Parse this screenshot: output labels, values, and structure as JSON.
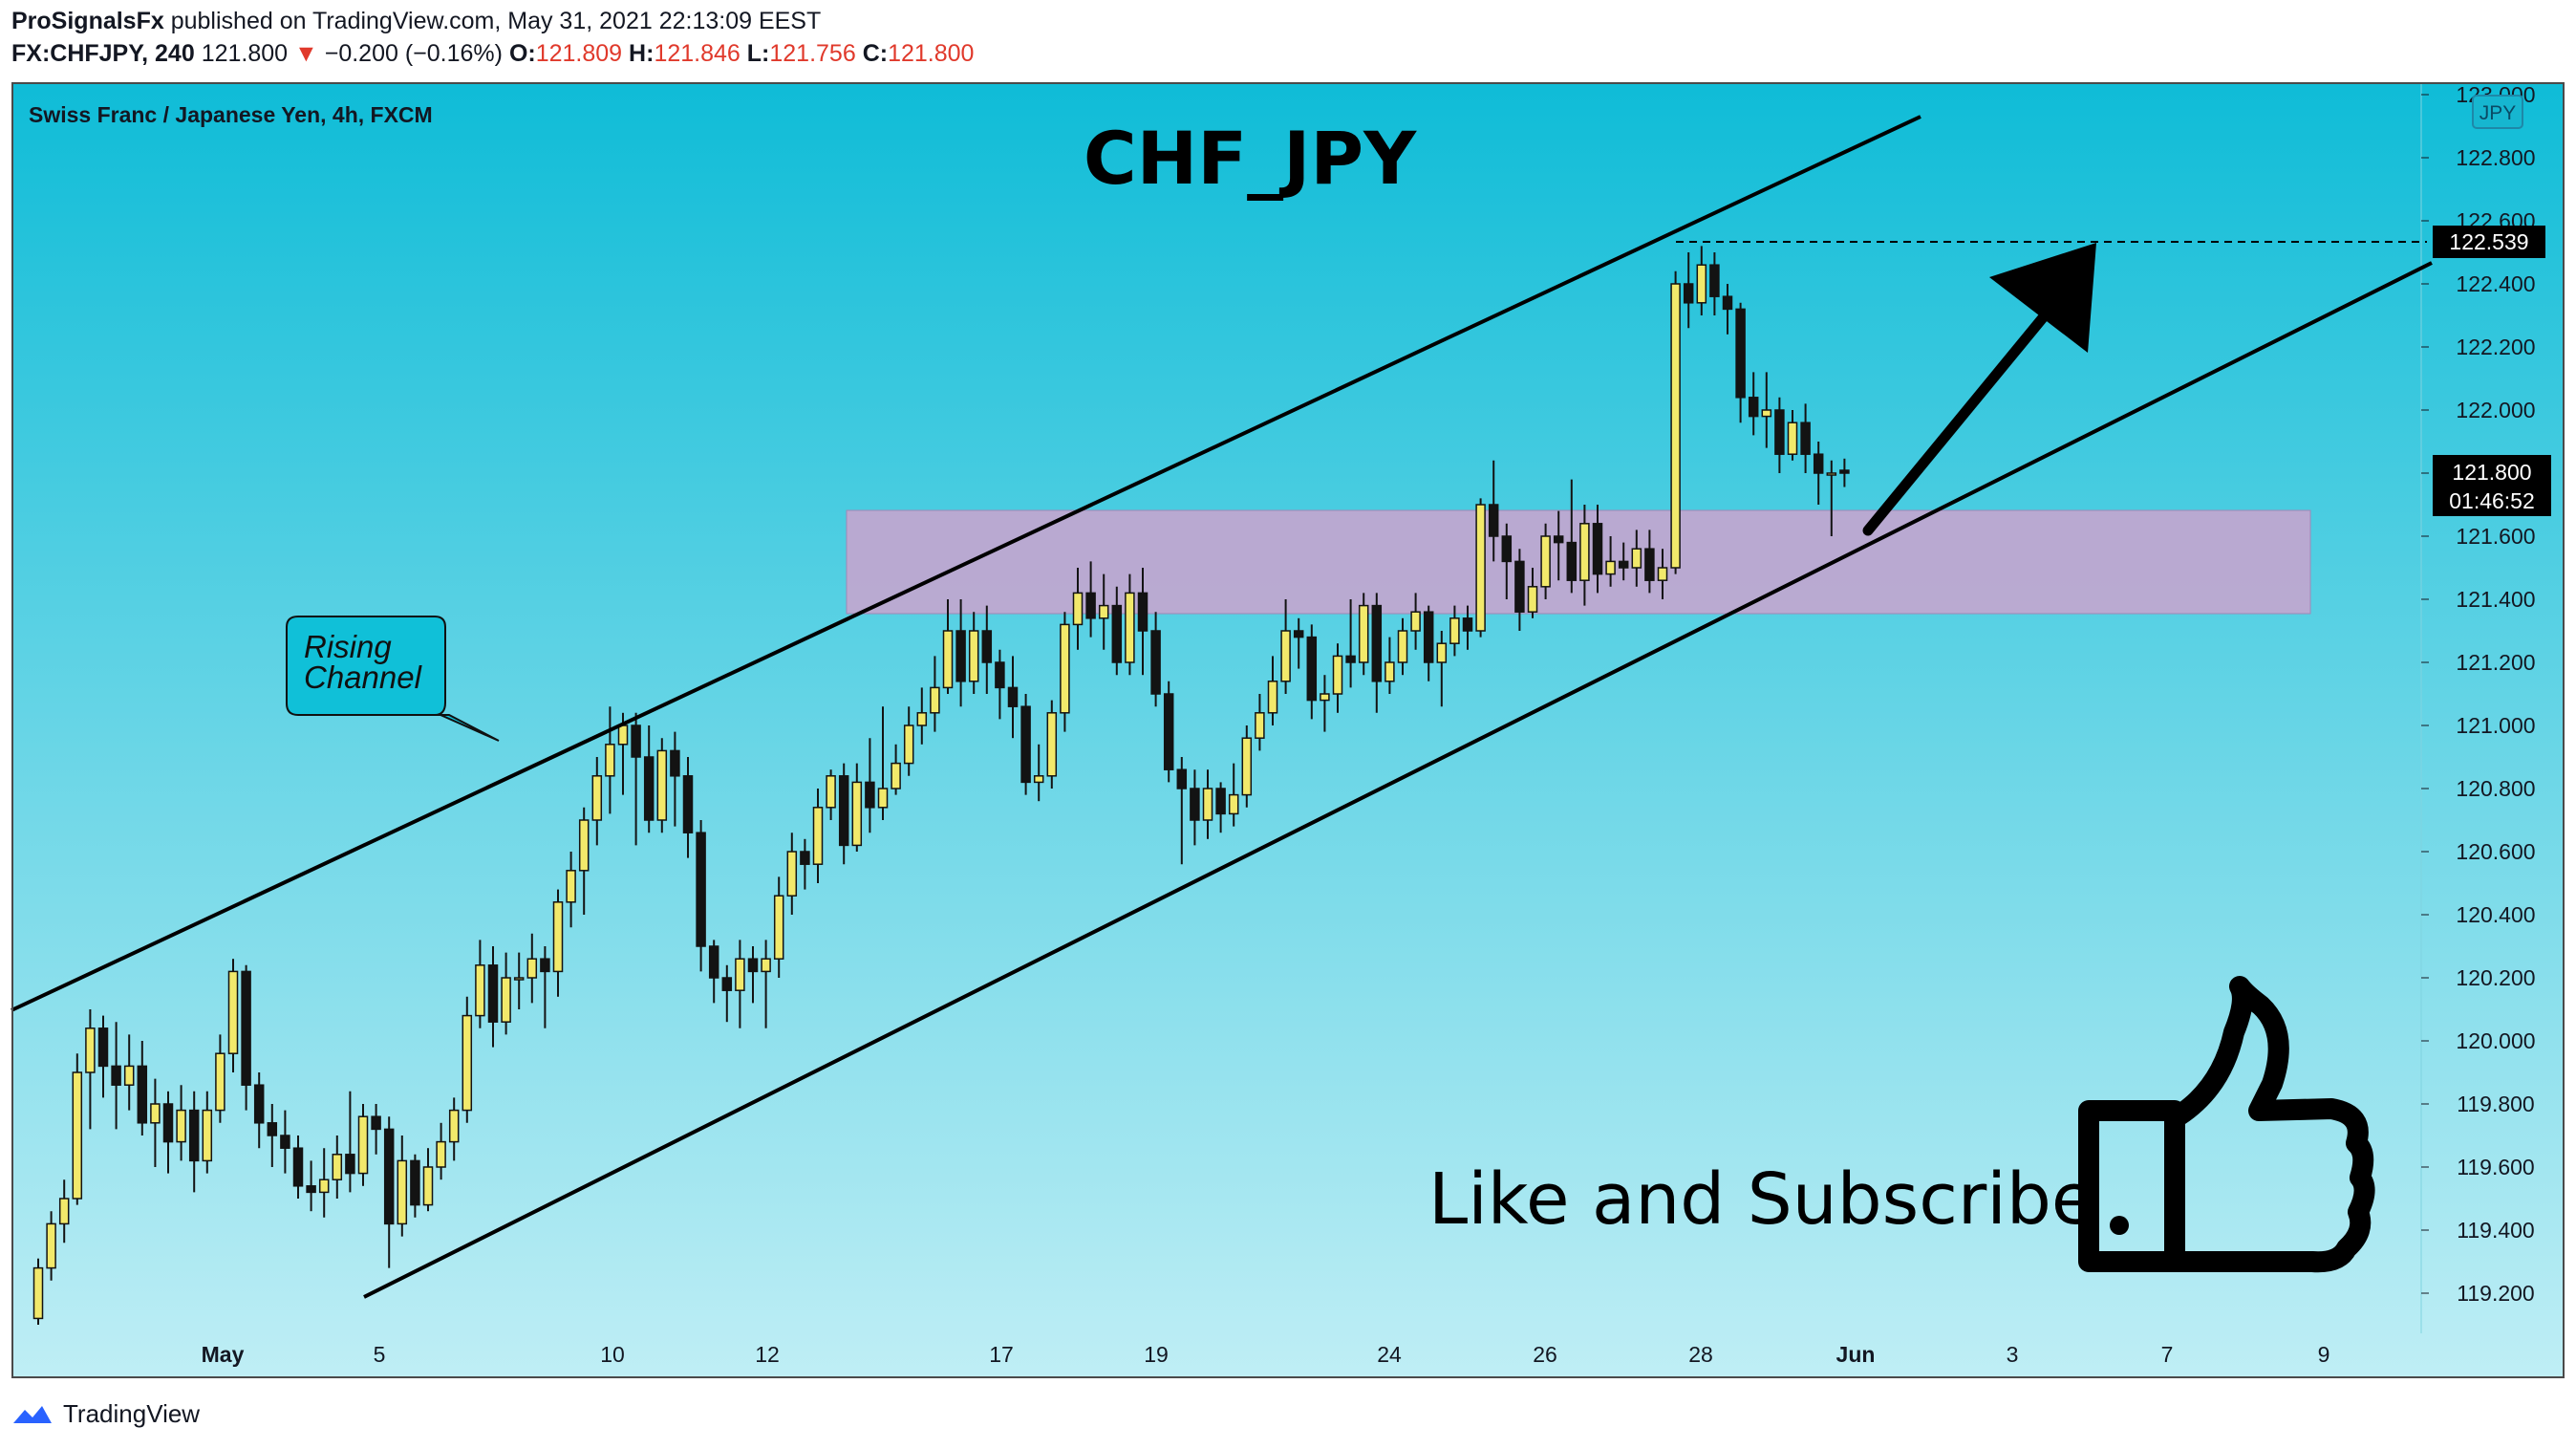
{
  "header": {
    "author": "ProSignalsFx",
    "published_text": "published on TradingView.com, May 31, 2021 22:13:09 EEST",
    "symbol": "FX:CHFJPY, 240",
    "last": "121.800",
    "change_arrow": "▼",
    "change": "−0.200 (−0.16%)",
    "o_label": "O:",
    "o_value": "121.809",
    "h_label": "H:",
    "h_value": "121.846",
    "l_label": "L:",
    "l_value": "121.756",
    "c_label": "C:",
    "c_value": "121.800"
  },
  "chart_title": "CHF_JPY",
  "instrument_label": "Swiss Franc / Japanese Yen, 4h, FXCM",
  "currency_badge": "JPY",
  "price_tag": {
    "value": "121.800",
    "countdown": "01:46:52"
  },
  "target_tag": "122.539",
  "callout": {
    "line1": "Rising",
    "line2": "Channel"
  },
  "promo_text": "Like and Subscribe",
  "footer_brand": "TradingView",
  "colors": {
    "bg_top": "#0fbcd7",
    "bg_bottom": "#bfeef5",
    "candle_up": "#f2e96b",
    "candle_down": "#131313",
    "zone": "#c2a6cf",
    "accent_red": "#e0392b"
  },
  "chart_data": {
    "type": "candlestick",
    "title": "CHF_JPY",
    "timeframe": "4h",
    "y_ticks": [
      "123.000",
      "122.800",
      "122.600",
      "122.400",
      "122.200",
      "122.000",
      "121.800",
      "121.600",
      "121.400",
      "121.200",
      "121.000",
      "120.800",
      "120.600",
      "120.400",
      "120.200",
      "120.000",
      "119.800",
      "119.600",
      "119.400",
      "119.200"
    ],
    "x_ticks": [
      "May",
      "5",
      "10",
      "12",
      "17",
      "19",
      "24",
      "26",
      "28",
      "Jun",
      "3",
      "7",
      "9"
    ],
    "ylim": [
      119.0,
      123.0
    ],
    "resistance_zone": [
      121.35,
      121.7
    ],
    "target_level": 122.539,
    "last_price": 121.8,
    "candles": [
      [
        119.12,
        119.28,
        119.1,
        119.31
      ],
      [
        119.28,
        119.42,
        119.24,
        119.46
      ],
      [
        119.42,
        119.5,
        119.36,
        119.56
      ],
      [
        119.5,
        119.9,
        119.48,
        119.96
      ],
      [
        119.9,
        120.04,
        119.72,
        120.1
      ],
      [
        120.04,
        119.92,
        119.82,
        120.08
      ],
      [
        119.92,
        119.86,
        119.72,
        120.06
      ],
      [
        119.86,
        119.92,
        119.78,
        120.02
      ],
      [
        119.92,
        119.74,
        119.7,
        120.0
      ],
      [
        119.74,
        119.8,
        119.6,
        119.88
      ],
      [
        119.8,
        119.68,
        119.58,
        119.84
      ],
      [
        119.68,
        119.78,
        119.62,
        119.86
      ],
      [
        119.78,
        119.62,
        119.52,
        119.84
      ],
      [
        119.62,
        119.78,
        119.58,
        119.84
      ],
      [
        119.78,
        119.96,
        119.74,
        120.02
      ],
      [
        119.96,
        120.22,
        119.9,
        120.26
      ],
      [
        120.22,
        119.86,
        119.78,
        120.24
      ],
      [
        119.86,
        119.74,
        119.66,
        119.9
      ],
      [
        119.74,
        119.7,
        119.6,
        119.8
      ],
      [
        119.7,
        119.66,
        119.58,
        119.78
      ],
      [
        119.66,
        119.54,
        119.5,
        119.7
      ],
      [
        119.54,
        119.52,
        119.46,
        119.62
      ],
      [
        119.52,
        119.56,
        119.44,
        119.66
      ],
      [
        119.56,
        119.64,
        119.5,
        119.7
      ],
      [
        119.64,
        119.58,
        119.52,
        119.84
      ],
      [
        119.58,
        119.76,
        119.54,
        119.8
      ],
      [
        119.76,
        119.72,
        119.64,
        119.8
      ],
      [
        119.72,
        119.42,
        119.28,
        119.76
      ],
      [
        119.42,
        119.62,
        119.38,
        119.7
      ],
      [
        119.62,
        119.48,
        119.44,
        119.64
      ],
      [
        119.48,
        119.6,
        119.46,
        119.66
      ],
      [
        119.6,
        119.68,
        119.56,
        119.74
      ],
      [
        119.68,
        119.78,
        119.62,
        119.82
      ],
      [
        119.78,
        120.08,
        119.74,
        120.14
      ],
      [
        120.08,
        120.24,
        120.04,
        120.32
      ],
      [
        120.24,
        120.06,
        119.98,
        120.3
      ],
      [
        120.06,
        120.2,
        120.02,
        120.28
      ],
      [
        120.2,
        120.2,
        120.1,
        120.28
      ],
      [
        120.2,
        120.26,
        120.12,
        120.34
      ],
      [
        120.26,
        120.22,
        120.04,
        120.3
      ],
      [
        120.22,
        120.44,
        120.14,
        120.48
      ],
      [
        120.44,
        120.54,
        120.36,
        120.6
      ],
      [
        120.54,
        120.7,
        120.4,
        120.74
      ],
      [
        120.7,
        120.84,
        120.62,
        120.9
      ],
      [
        120.84,
        120.94,
        120.72,
        121.06
      ],
      [
        120.94,
        121.0,
        120.78,
        121.04
      ],
      [
        121.0,
        120.9,
        120.62,
        121.04
      ],
      [
        120.9,
        120.7,
        120.66,
        121.0
      ],
      [
        120.7,
        120.92,
        120.66,
        120.96
      ],
      [
        120.92,
        120.84,
        120.68,
        120.98
      ],
      [
        120.84,
        120.66,
        120.58,
        120.9
      ],
      [
        120.66,
        120.3,
        120.22,
        120.7
      ],
      [
        120.3,
        120.2,
        120.12,
        120.32
      ],
      [
        120.2,
        120.16,
        120.06,
        120.24
      ],
      [
        120.16,
        120.26,
        120.04,
        120.32
      ],
      [
        120.26,
        120.22,
        120.12,
        120.3
      ],
      [
        120.22,
        120.26,
        120.04,
        120.32
      ],
      [
        120.26,
        120.46,
        120.2,
        120.52
      ],
      [
        120.46,
        120.6,
        120.4,
        120.66
      ],
      [
        120.6,
        120.56,
        120.48,
        120.64
      ],
      [
        120.56,
        120.74,
        120.5,
        120.8
      ],
      [
        120.74,
        120.84,
        120.7,
        120.86
      ],
      [
        120.84,
        120.62,
        120.56,
        120.88
      ],
      [
        120.62,
        120.82,
        120.6,
        120.88
      ],
      [
        120.82,
        120.74,
        120.66,
        120.96
      ],
      [
        120.74,
        120.8,
        120.7,
        121.06
      ],
      [
        120.8,
        120.88,
        120.78,
        120.94
      ],
      [
        120.88,
        121.0,
        120.84,
        121.06
      ],
      [
        121.0,
        121.04,
        120.94,
        121.12
      ],
      [
        121.04,
        121.12,
        120.98,
        121.22
      ],
      [
        121.12,
        121.3,
        121.1,
        121.4
      ],
      [
        121.3,
        121.14,
        121.06,
        121.4
      ],
      [
        121.14,
        121.3,
        121.1,
        121.36
      ],
      [
        121.3,
        121.2,
        121.1,
        121.38
      ],
      [
        121.2,
        121.12,
        121.02,
        121.24
      ],
      [
        121.12,
        121.06,
        120.96,
        121.22
      ],
      [
        121.06,
        120.82,
        120.78,
        121.1
      ],
      [
        120.82,
        120.84,
        120.76,
        120.94
      ],
      [
        120.84,
        121.04,
        120.8,
        121.08
      ],
      [
        121.04,
        121.32,
        120.98,
        121.36
      ],
      [
        121.32,
        121.42,
        121.24,
        121.5
      ],
      [
        121.42,
        121.34,
        121.28,
        121.52
      ],
      [
        121.34,
        121.38,
        121.24,
        121.48
      ],
      [
        121.38,
        121.2,
        121.16,
        121.44
      ],
      [
        121.2,
        121.42,
        121.16,
        121.48
      ],
      [
        121.42,
        121.3,
        121.16,
        121.5
      ],
      [
        121.3,
        121.1,
        121.06,
        121.36
      ],
      [
        121.1,
        120.86,
        120.82,
        121.14
      ],
      [
        120.86,
        120.8,
        120.56,
        120.9
      ],
      [
        120.8,
        120.7,
        120.62,
        120.86
      ],
      [
        120.7,
        120.8,
        120.64,
        120.86
      ],
      [
        120.8,
        120.72,
        120.66,
        120.82
      ],
      [
        120.72,
        120.78,
        120.68,
        120.88
      ],
      [
        120.78,
        120.96,
        120.74,
        121.0
      ],
      [
        120.96,
        121.04,
        120.92,
        121.1
      ],
      [
        121.04,
        121.14,
        121.0,
        121.22
      ],
      [
        121.14,
        121.3,
        121.1,
        121.4
      ],
      [
        121.3,
        121.28,
        121.18,
        121.34
      ],
      [
        121.28,
        121.08,
        121.02,
        121.32
      ],
      [
        121.08,
        121.1,
        120.98,
        121.16
      ],
      [
        121.1,
        121.22,
        121.04,
        121.26
      ],
      [
        121.22,
        121.2,
        121.12,
        121.4
      ],
      [
        121.2,
        121.38,
        121.16,
        121.42
      ],
      [
        121.38,
        121.14,
        121.04,
        121.42
      ],
      [
        121.14,
        121.2,
        121.1,
        121.28
      ],
      [
        121.2,
        121.3,
        121.16,
        121.34
      ],
      [
        121.3,
        121.36,
        121.24,
        121.42
      ],
      [
        121.36,
        121.2,
        121.14,
        121.38
      ],
      [
        121.2,
        121.26,
        121.06,
        121.3
      ],
      [
        121.26,
        121.34,
        121.22,
        121.38
      ],
      [
        121.34,
        121.3,
        121.24,
        121.38
      ],
      [
        121.3,
        121.7,
        121.28,
        121.72
      ],
      [
        121.7,
        121.6,
        121.52,
        121.84
      ],
      [
        121.6,
        121.52,
        121.4,
        121.64
      ],
      [
        121.52,
        121.36,
        121.3,
        121.56
      ],
      [
        121.36,
        121.44,
        121.34,
        121.5
      ],
      [
        121.44,
        121.6,
        121.4,
        121.64
      ],
      [
        121.6,
        121.58,
        121.46,
        121.68
      ],
      [
        121.58,
        121.46,
        121.42,
        121.78
      ],
      [
        121.46,
        121.64,
        121.38,
        121.7
      ],
      [
        121.64,
        121.48,
        121.42,
        121.7
      ],
      [
        121.48,
        121.52,
        121.44,
        121.6
      ],
      [
        121.52,
        121.5,
        121.46,
        121.58
      ],
      [
        121.5,
        121.56,
        121.44,
        121.62
      ],
      [
        121.56,
        121.46,
        121.42,
        121.62
      ],
      [
        121.46,
        121.5,
        121.4,
        121.56
      ],
      [
        121.5,
        122.4,
        121.48,
        122.44
      ],
      [
        122.4,
        122.34,
        122.26,
        122.5
      ],
      [
        122.34,
        122.46,
        122.3,
        122.52
      ],
      [
        122.46,
        122.36,
        122.3,
        122.5
      ],
      [
        122.36,
        122.32,
        122.24,
        122.4
      ],
      [
        122.32,
        122.04,
        121.96,
        122.34
      ],
      [
        122.04,
        121.98,
        121.92,
        122.12
      ],
      [
        121.98,
        122.0,
        121.88,
        122.12
      ],
      [
        122.0,
        121.86,
        121.8,
        122.04
      ],
      [
        121.86,
        121.96,
        121.84,
        122.0
      ],
      [
        121.96,
        121.86,
        121.8,
        122.02
      ],
      [
        121.86,
        121.8,
        121.7,
        121.9
      ],
      [
        121.8,
        121.8,
        121.6,
        121.84
      ],
      [
        121.809,
        121.8,
        121.756,
        121.846
      ]
    ]
  }
}
